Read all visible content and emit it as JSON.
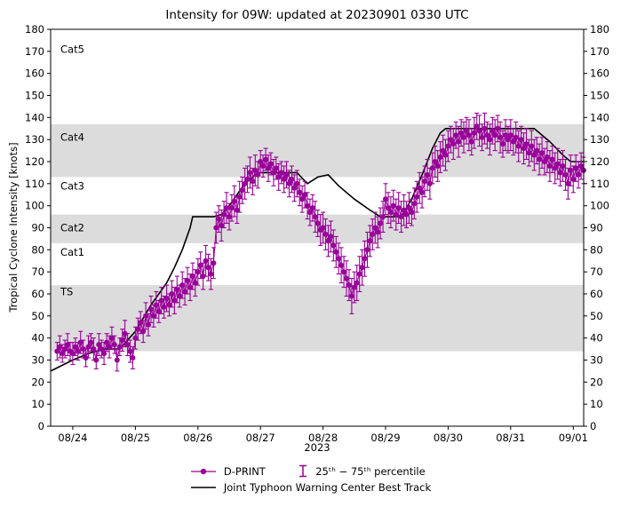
{
  "chart_data": {
    "type": "scatter",
    "title": "Intensity for 09W: updated at 20230901 0330 UTC",
    "ylabel": "Tropical Cyclone Intensity [knots]",
    "xlabel_year": "2023",
    "y_range": [
      0,
      180
    ],
    "y_tick_step": 10,
    "x_range": [
      -8.5,
      196
    ],
    "x_unit": "hours from 08/24 00Z",
    "x_ticks": [
      {
        "t": 0,
        "label": "08/24"
      },
      {
        "t": 24,
        "label": "08/25"
      },
      {
        "t": 48,
        "label": "08/26"
      },
      {
        "t": 72,
        "label": "08/27"
      },
      {
        "t": 96,
        "label": "08/28"
      },
      {
        "t": 120,
        "label": "08/29"
      },
      {
        "t": 144,
        "label": "08/30"
      },
      {
        "t": 168,
        "label": "08/31"
      },
      {
        "t": 192,
        "label": "09/01"
      }
    ],
    "bands": [
      [
        34,
        64
      ],
      [
        83,
        96
      ],
      [
        113,
        137
      ]
    ],
    "category_labels": [
      {
        "label": "Cat5",
        "v": 171
      },
      {
        "label": "Cat4",
        "v": 131
      },
      {
        "label": "Cat3",
        "v": 109
      },
      {
        "label": "Cat2",
        "v": 90
      },
      {
        "label": "Cat1",
        "v": 79
      },
      {
        "label": "TS",
        "v": 61
      }
    ],
    "colors": {
      "dprint": "#990099",
      "best_track": "#000000",
      "band": "#dcdcdc"
    },
    "legend": {
      "dprint": "D-PRINT",
      "percentile": "25ᵗʰ − 75ᵗʰ percentile",
      "best_track": "Joint Typhoon Warning Center Best Track"
    },
    "best_track": [
      [
        -8.5,
        25
      ],
      [
        0,
        30
      ],
      [
        6,
        33
      ],
      [
        12,
        35
      ],
      [
        18,
        35
      ],
      [
        24,
        43
      ],
      [
        30,
        55
      ],
      [
        36,
        65
      ],
      [
        39,
        72
      ],
      [
        42,
        80
      ],
      [
        45,
        90
      ],
      [
        46,
        95
      ],
      [
        54,
        95
      ],
      [
        57,
        96
      ],
      [
        60,
        100
      ],
      [
        66,
        110
      ],
      [
        70,
        114
      ],
      [
        72,
        115
      ],
      [
        86,
        115
      ],
      [
        90,
        110
      ],
      [
        94,
        113
      ],
      [
        98,
        114
      ],
      [
        102,
        109
      ],
      [
        108,
        103
      ],
      [
        114,
        98
      ],
      [
        118,
        95
      ],
      [
        126,
        95
      ],
      [
        130,
        103
      ],
      [
        134,
        114
      ],
      [
        138,
        126
      ],
      [
        141,
        133
      ],
      [
        143,
        135
      ],
      [
        177,
        135
      ],
      [
        183,
        129
      ],
      [
        188,
        123
      ],
      [
        191,
        120
      ],
      [
        196,
        120
      ]
    ],
    "dprint": [
      [
        -6,
        34,
        4
      ],
      [
        -5,
        36,
        5
      ],
      [
        -4,
        33,
        4
      ],
      [
        -3,
        35,
        4
      ],
      [
        -2,
        37,
        5
      ],
      [
        -1,
        34,
        4
      ],
      [
        0,
        33,
        5
      ],
      [
        1,
        36,
        4
      ],
      [
        2,
        34,
        4
      ],
      [
        3,
        38,
        5
      ],
      [
        4,
        35,
        4
      ],
      [
        5,
        31,
        4
      ],
      [
        6,
        36,
        5
      ],
      [
        7,
        38,
        4
      ],
      [
        8,
        35,
        5
      ],
      [
        9,
        30,
        4
      ],
      [
        10,
        37,
        5
      ],
      [
        11,
        35,
        4
      ],
      [
        12,
        33,
        5
      ],
      [
        13,
        38,
        4
      ],
      [
        14,
        36,
        5
      ],
      [
        15,
        40,
        5
      ],
      [
        16,
        37,
        4
      ],
      [
        17,
        30,
        5
      ],
      [
        18,
        36,
        4
      ],
      [
        19,
        39,
        5
      ],
      [
        20,
        42,
        6
      ],
      [
        21,
        37,
        5
      ],
      [
        22,
        34,
        5
      ],
      [
        23,
        31,
        5
      ],
      [
        24,
        40,
        5
      ],
      [
        25,
        44,
        5
      ],
      [
        26,
        47,
        5
      ],
      [
        27,
        43,
        5
      ],
      [
        28,
        50,
        6
      ],
      [
        29,
        46,
        5
      ],
      [
        30,
        53,
        6
      ],
      [
        31,
        50,
        5
      ],
      [
        32,
        55,
        6
      ],
      [
        33,
        52,
        5
      ],
      [
        34,
        57,
        6
      ],
      [
        35,
        54,
        5
      ],
      [
        36,
        58,
        6
      ],
      [
        37,
        55,
        5
      ],
      [
        38,
        60,
        6
      ],
      [
        39,
        57,
        6
      ],
      [
        40,
        62,
        6
      ],
      [
        41,
        59,
        5
      ],
      [
        42,
        64,
        6
      ],
      [
        43,
        61,
        6
      ],
      [
        44,
        66,
        6
      ],
      [
        45,
        63,
        6
      ],
      [
        46,
        68,
        6
      ],
      [
        47,
        65,
        6
      ],
      [
        48,
        70,
        6
      ],
      [
        49,
        73,
        6
      ],
      [
        50,
        68,
        6
      ],
      [
        51,
        75,
        7
      ],
      [
        52,
        72,
        6
      ],
      [
        53,
        69,
        7
      ],
      [
        54,
        74,
        7
      ],
      [
        55,
        90,
        7
      ],
      [
        56,
        94,
        6
      ],
      [
        57,
        91,
        7
      ],
      [
        58,
        96,
        6
      ],
      [
        59,
        99,
        7
      ],
      [
        60,
        95,
        6
      ],
      [
        61,
        99,
        6
      ],
      [
        62,
        102,
        7
      ],
      [
        63,
        98,
        6
      ],
      [
        64,
        104,
        7
      ],
      [
        65,
        107,
        6
      ],
      [
        66,
        110,
        7
      ],
      [
        67,
        112,
        6
      ],
      [
        68,
        115,
        7
      ],
      [
        69,
        111,
        6
      ],
      [
        70,
        116,
        7
      ],
      [
        71,
        114,
        6
      ],
      [
        72,
        120,
        5
      ],
      [
        73,
        118,
        5
      ],
      [
        74,
        121,
        5
      ],
      [
        75,
        117,
        6
      ],
      [
        76,
        119,
        5
      ],
      [
        77,
        115,
        6
      ],
      [
        78,
        117,
        5
      ],
      [
        79,
        113,
        6
      ],
      [
        80,
        115,
        5
      ],
      [
        81,
        112,
        6
      ],
      [
        82,
        114,
        6
      ],
      [
        83,
        110,
        6
      ],
      [
        84,
        112,
        6
      ],
      [
        85,
        108,
        6
      ],
      [
        86,
        110,
        6
      ],
      [
        87,
        106,
        6
      ],
      [
        88,
        103,
        6
      ],
      [
        89,
        105,
        6
      ],
      [
        90,
        100,
        6
      ],
      [
        91,
        97,
        6
      ],
      [
        92,
        99,
        6
      ],
      [
        93,
        95,
        7
      ],
      [
        94,
        92,
        6
      ],
      [
        95,
        89,
        7
      ],
      [
        96,
        90,
        7
      ],
      [
        97,
        87,
        7
      ],
      [
        98,
        84,
        7
      ],
      [
        99,
        86,
        7
      ],
      [
        100,
        82,
        7
      ],
      [
        101,
        79,
        7
      ],
      [
        102,
        76,
        7
      ],
      [
        103,
        73,
        8
      ],
      [
        104,
        70,
        7
      ],
      [
        105,
        67,
        8
      ],
      [
        106,
        64,
        7
      ],
      [
        107,
        59,
        8
      ],
      [
        108,
        63,
        7
      ],
      [
        109,
        65,
        8
      ],
      [
        110,
        69,
        8
      ],
      [
        111,
        72,
        8
      ],
      [
        112,
        76,
        8
      ],
      [
        113,
        80,
        8
      ],
      [
        114,
        84,
        7
      ],
      [
        115,
        87,
        7
      ],
      [
        116,
        90,
        7
      ],
      [
        117,
        88,
        7
      ],
      [
        118,
        92,
        7
      ],
      [
        119,
        95,
        7
      ],
      [
        120,
        103,
        7
      ],
      [
        121,
        99,
        7
      ],
      [
        122,
        97,
        7
      ],
      [
        123,
        100,
        7
      ],
      [
        124,
        96,
        7
      ],
      [
        125,
        99,
        7
      ],
      [
        126,
        95,
        7
      ],
      [
        127,
        98,
        7
      ],
      [
        128,
        96,
        6
      ],
      [
        129,
        99,
        7
      ],
      [
        130,
        97,
        6
      ],
      [
        131,
        101,
        7
      ],
      [
        132,
        104,
        7
      ],
      [
        133,
        108,
        7
      ],
      [
        134,
        106,
        7
      ],
      [
        135,
        111,
        7
      ],
      [
        136,
        114,
        7
      ],
      [
        137,
        110,
        7
      ],
      [
        138,
        117,
        7
      ],
      [
        139,
        120,
        7
      ],
      [
        140,
        118,
        7
      ],
      [
        141,
        122,
        7
      ],
      [
        142,
        125,
        7
      ],
      [
        143,
        123,
        7
      ],
      [
        144,
        127,
        7
      ],
      [
        145,
        130,
        6
      ],
      [
        146,
        128,
        7
      ],
      [
        147,
        132,
        6
      ],
      [
        148,
        129,
        7
      ],
      [
        149,
        133,
        6
      ],
      [
        150,
        131,
        7
      ],
      [
        151,
        134,
        6
      ],
      [
        152,
        132,
        7
      ],
      [
        153,
        129,
        6
      ],
      [
        154,
        133,
        7
      ],
      [
        155,
        136,
        6
      ],
      [
        156,
        134,
        7
      ],
      [
        157,
        131,
        6
      ],
      [
        158,
        135,
        7
      ],
      [
        159,
        132,
        6
      ],
      [
        160,
        130,
        7
      ],
      [
        161,
        134,
        6
      ],
      [
        162,
        132,
        7
      ],
      [
        163,
        135,
        6
      ],
      [
        164,
        131,
        7
      ],
      [
        165,
        128,
        6
      ],
      [
        166,
        132,
        7
      ],
      [
        167,
        130,
        6
      ],
      [
        168,
        132,
        7
      ],
      [
        169,
        129,
        6
      ],
      [
        170,
        131,
        7
      ],
      [
        171,
        127,
        7
      ],
      [
        172,
        130,
        6
      ],
      [
        173,
        126,
        7
      ],
      [
        174,
        128,
        7
      ],
      [
        175,
        124,
        6
      ],
      [
        176,
        127,
        7
      ],
      [
        177,
        123,
        7
      ],
      [
        178,
        125,
        6
      ],
      [
        179,
        121,
        7
      ],
      [
        180,
        124,
        7
      ],
      [
        181,
        120,
        6
      ],
      [
        182,
        122,
        7
      ],
      [
        183,
        118,
        7
      ],
      [
        184,
        121,
        6
      ],
      [
        185,
        117,
        7
      ],
      [
        186,
        119,
        7
      ],
      [
        187,
        115,
        6
      ],
      [
        188,
        118,
        7
      ],
      [
        189,
        114,
        7
      ],
      [
        190,
        110,
        7
      ],
      [
        191,
        116,
        7
      ],
      [
        192,
        112,
        6
      ],
      [
        193,
        117,
        6
      ],
      [
        194,
        114,
        6
      ],
      [
        195,
        118,
        6
      ],
      [
        196,
        116,
        6
      ]
    ]
  }
}
